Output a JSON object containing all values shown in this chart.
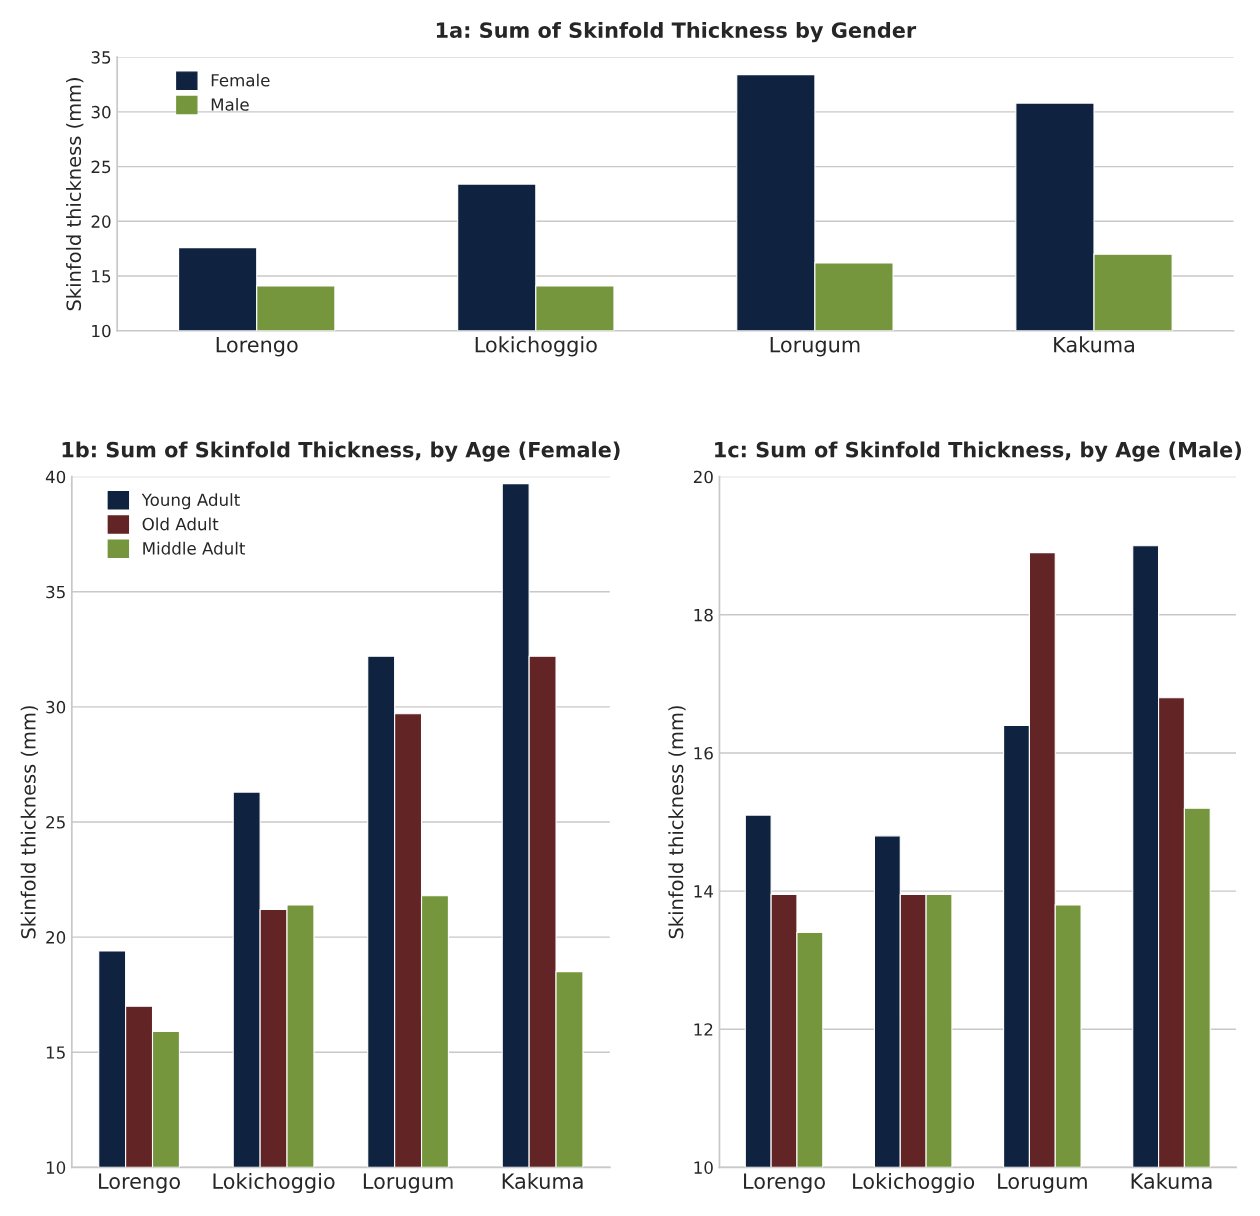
{
  "chart_data": [
    {
      "type": "bar",
      "title": "1a: Sum of Skinfold Thickness by Gender",
      "ylabel": "Skinfold thickness (mm)",
      "categories": [
        "Lorengo",
        "Lokichoggio",
        "Lorugum",
        "Kakuma"
      ],
      "series": [
        {
          "name": "Female",
          "color": "#0f2340",
          "values": [
            17.6,
            23.4,
            33.4,
            30.8
          ]
        },
        {
          "name": "Male",
          "color": "#76963d",
          "values": [
            14.1,
            14.1,
            16.2,
            17.0
          ]
        }
      ],
      "ylim": [
        10,
        35
      ],
      "yticks": [
        10,
        15,
        20,
        25,
        30,
        35
      ],
      "grid": "y",
      "legend": "top left"
    },
    {
      "type": "bar",
      "title": "1b: Sum of Skinfold Thickness, by Age (Female)",
      "ylabel": "Skinfold thickness (mm)",
      "categories": [
        "Lorengo",
        "Lokichoggio",
        "Lorugum",
        "Kakuma"
      ],
      "series": [
        {
          "name": "Young Adult",
          "color": "#0f2340",
          "values": [
            19.4,
            26.3,
            32.2,
            39.7
          ]
        },
        {
          "name": "Old Adult",
          "color": "#632425",
          "values": [
            17.0,
            21.2,
            29.7,
            32.2
          ]
        },
        {
          "name": "Middle Adult",
          "color": "#76963d",
          "values": [
            15.9,
            21.4,
            21.8,
            18.5
          ]
        }
      ],
      "ylim": [
        10,
        40
      ],
      "yticks": [
        10,
        15,
        20,
        25,
        30,
        35,
        40
      ],
      "grid": "y",
      "legend": "top left"
    },
    {
      "type": "bar",
      "title": "1c: Sum of Skinfold Thickness, by Age (Male)",
      "ylabel": "Skinfold thickness (mm)",
      "categories": [
        "Lorengo",
        "Lokichoggio",
        "Lorugum",
        "Kakuma"
      ],
      "series": [
        {
          "color": "#0f2340",
          "values": [
            15.1,
            14.8,
            16.4,
            19.0
          ]
        },
        {
          "color": "#632425",
          "values": [
            13.95,
            13.95,
            18.9,
            16.8
          ]
        },
        {
          "color": "#76963d",
          "values": [
            13.4,
            13.95,
            13.8,
            15.2
          ]
        }
      ],
      "ylim": [
        10,
        20
      ],
      "yticks": [
        10,
        12,
        14,
        16,
        18,
        20
      ],
      "grid": "y"
    }
  ]
}
